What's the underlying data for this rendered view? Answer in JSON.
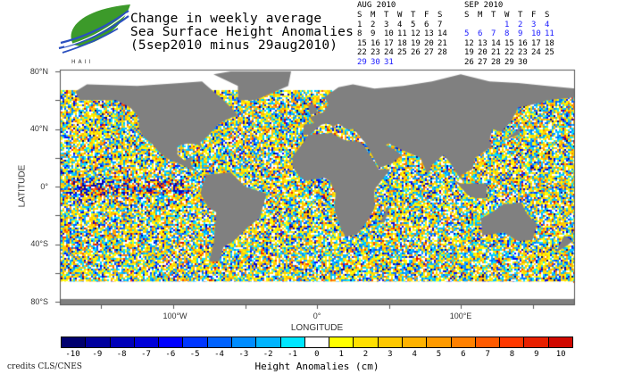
{
  "logo": {
    "text": "HAII"
  },
  "title": {
    "line1": "Change in weekly average",
    "line2": "Sea Surface Height Anomalies",
    "line3": "(5sep2010 minus 29aug2010)"
  },
  "calendars": [
    {
      "title": "AUG 2010",
      "weekdays": [
        "S",
        "M",
        "T",
        "W",
        "T",
        "F",
        "S"
      ],
      "weeks": [
        [
          "1",
          "2",
          "3",
          "4",
          "5",
          "6",
          "7"
        ],
        [
          "8",
          "9",
          "10",
          "11",
          "12",
          "13",
          "14"
        ],
        [
          "15",
          "16",
          "17",
          "18",
          "19",
          "20",
          "21"
        ],
        [
          "22",
          "23",
          "24",
          "25",
          "26",
          "27",
          "28"
        ],
        [
          "29",
          "30",
          "31",
          "",
          "",
          "",
          ""
        ]
      ],
      "highlighted": [
        "29",
        "30",
        "31"
      ]
    },
    {
      "title": "SEP 2010",
      "weekdays": [
        "S",
        "M",
        "T",
        "W",
        "T",
        "F",
        "S"
      ],
      "weeks": [
        [
          "",
          "",
          "",
          "1",
          "2",
          "3",
          "4"
        ],
        [
          "5",
          "6",
          "7",
          "8",
          "9",
          "10",
          "11"
        ],
        [
          "12",
          "13",
          "14",
          "15",
          "16",
          "17",
          "18"
        ],
        [
          "19",
          "20",
          "21",
          "22",
          "23",
          "24",
          "25"
        ],
        [
          "26",
          "27",
          "28",
          "29",
          "30",
          "",
          ""
        ]
      ],
      "highlighted": [
        "1",
        "2",
        "3",
        "4",
        "5",
        "6",
        "7",
        "8",
        "9",
        "10",
        "11"
      ]
    }
  ],
  "highlight_color": "#1a1aff",
  "map": {
    "latitude_label": "LATITUDE",
    "longitude_label": "LONGITUDE",
    "lat_ticks": [
      "80°N",
      "40°N",
      "0°",
      "40°S",
      "80°S"
    ],
    "lon_ticks": [
      "100°W",
      "0°",
      "100°E"
    ],
    "land_color": "#808080",
    "no_data_color": "#ffffff"
  },
  "colorbar": {
    "title": "Height Anomalies (cm)",
    "labels": [
      "-10",
      "-9",
      "-8",
      "-7",
      "-6",
      "-5",
      "-4",
      "-3",
      "-2",
      "-1",
      "0",
      "1",
      "2",
      "3",
      "4",
      "5",
      "6",
      "7",
      "8",
      "9",
      "10"
    ],
    "colors": [
      "#00006e",
      "#00009e",
      "#0000b8",
      "#0000d8",
      "#0000ff",
      "#0036ff",
      "#0062ff",
      "#008cff",
      "#00b4ff",
      "#00e6ff",
      "#ffffff",
      "#ffff00",
      "#ffe000",
      "#ffc800",
      "#ffb200",
      "#ff9a00",
      "#ff8000",
      "#ff5a00",
      "#ff3800",
      "#e82000",
      "#d00800"
    ]
  },
  "credits": "credits CLS/CNES"
}
